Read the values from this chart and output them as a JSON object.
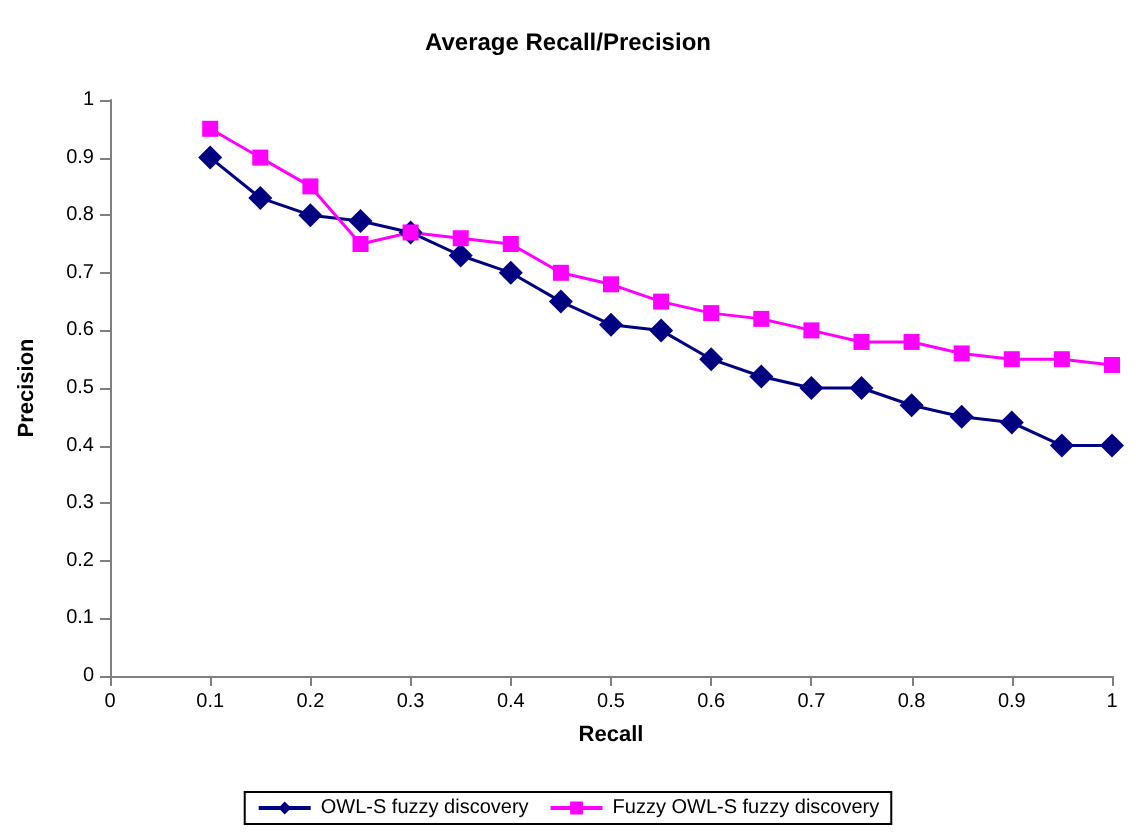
{
  "chart_data": {
    "type": "line",
    "title": "Average Recall/Precision",
    "xlabel": "Recall",
    "ylabel": "Precision",
    "x": [
      0.1,
      0.15,
      0.2,
      0.25,
      0.3,
      0.35,
      0.4,
      0.45,
      0.5,
      0.55,
      0.6,
      0.65,
      0.7,
      0.75,
      0.8,
      0.85,
      0.9,
      0.95,
      1
    ],
    "series": [
      {
        "name": "OWL-S fuzzy discovery",
        "color": "#000080",
        "marker": "diamond",
        "values": [
          0.9,
          0.83,
          0.8,
          0.79,
          0.77,
          0.73,
          0.7,
          0.65,
          0.61,
          0.6,
          0.55,
          0.52,
          0.5,
          0.5,
          0.47,
          0.45,
          0.44,
          0.4,
          0.4
        ]
      },
      {
        "name": "Fuzzy OWL-S fuzzy discovery",
        "color": "#ff00ff",
        "marker": "square",
        "values": [
          0.95,
          0.9,
          0.85,
          0.75,
          0.77,
          0.76,
          0.75,
          0.7,
          0.68,
          0.65,
          0.63,
          0.62,
          0.6,
          0.58,
          0.58,
          0.56,
          0.55,
          0.55,
          0.54
        ]
      }
    ],
    "xlim": [
      0,
      1
    ],
    "xticks": [
      0,
      0.1,
      0.2,
      0.3,
      0.4,
      0.5,
      0.6,
      0.7,
      0.8,
      0.9,
      1
    ],
    "ylim": [
      0,
      1
    ],
    "yticks": [
      0,
      0.1,
      0.2,
      0.3,
      0.4,
      0.5,
      0.6,
      0.7,
      0.8,
      0.9,
      1
    ],
    "grid": false,
    "legend": "bottom",
    "line_style": "solid"
  }
}
